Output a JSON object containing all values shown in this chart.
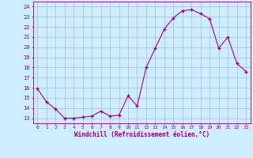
{
  "x": [
    0,
    1,
    2,
    3,
    4,
    5,
    6,
    7,
    8,
    9,
    10,
    11,
    12,
    13,
    14,
    15,
    16,
    17,
    18,
    19,
    20,
    21,
    22,
    23
  ],
  "y": [
    15.9,
    14.6,
    13.9,
    13.0,
    13.0,
    13.1,
    13.2,
    13.7,
    13.2,
    13.3,
    15.2,
    14.2,
    18.0,
    19.9,
    21.8,
    22.9,
    23.6,
    23.7,
    23.3,
    22.8,
    19.9,
    21.0,
    18.4,
    17.6
  ],
  "line_color": "#990099",
  "marker": "+",
  "marker_size": 3,
  "bg_color": "#cceeff",
  "grid_color": "#aaaacc",
  "xlabel": "Windchill (Refroidissement éolien,°C)",
  "xlabel_color": "#880088",
  "ylim": [
    12.5,
    24.5
  ],
  "xlim": [
    -0.5,
    23.5
  ],
  "yticks": [
    13,
    14,
    15,
    16,
    17,
    18,
    19,
    20,
    21,
    22,
    23,
    24
  ],
  "xticks": [
    0,
    1,
    2,
    3,
    4,
    5,
    6,
    7,
    8,
    9,
    10,
    11,
    12,
    13,
    14,
    15,
    16,
    17,
    18,
    19,
    20,
    21,
    22,
    23
  ],
  "tick_color": "#880088",
  "axis_color": "#880088"
}
